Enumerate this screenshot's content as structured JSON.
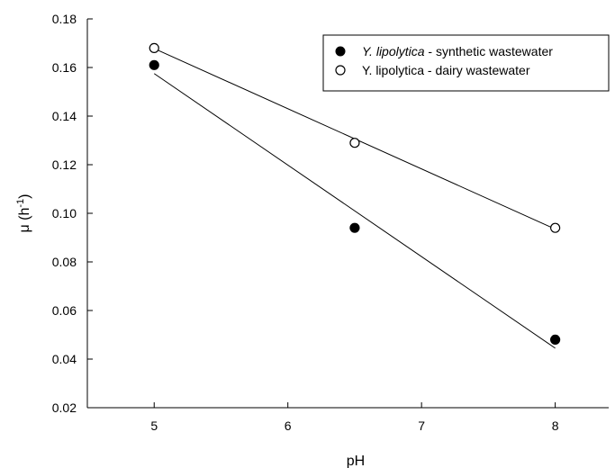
{
  "chart_data": {
    "type": "scatter",
    "xlabel": "pH",
    "ylabel_main": "μ (h",
    "ylabel_sup": "-1",
    "ylabel_close": ")",
    "xlim": [
      4.5,
      8.4
    ],
    "ylim": [
      0.02,
      0.18
    ],
    "xticks": [
      5,
      6,
      7,
      8
    ],
    "yticks": [
      0.02,
      0.04,
      0.06,
      0.08,
      0.1,
      0.12,
      0.14,
      0.16,
      0.18
    ],
    "ytick_labels": [
      "0.02",
      "0.04",
      "0.06",
      "0.08",
      "0.10",
      "0.12",
      "0.14",
      "0.16",
      "0.18"
    ],
    "xtick_labels": [
      "5",
      "6",
      "7",
      "8"
    ],
    "grid": false,
    "legend_position": "top-right",
    "series": [
      {
        "name_italic": "Y. lipolytica",
        "name_rest": " - synthetic wastewater",
        "marker": "filled-circle",
        "x": [
          5,
          6.5,
          8
        ],
        "y": [
          0.161,
          0.094,
          0.048
        ],
        "fit": {
          "x": [
            5,
            8
          ],
          "y": [
            0.1575,
            0.0445
          ]
        }
      },
      {
        "name_italic": "",
        "name_rest": "Y. lipolytica - dairy wastewater",
        "marker": "open-circle",
        "x": [
          5,
          6.5,
          8
        ],
        "y": [
          0.168,
          0.129,
          0.094
        ],
        "fit": {
          "x": [
            5,
            8
          ],
          "y": [
            0.1678,
            0.0935
          ]
        }
      }
    ]
  }
}
